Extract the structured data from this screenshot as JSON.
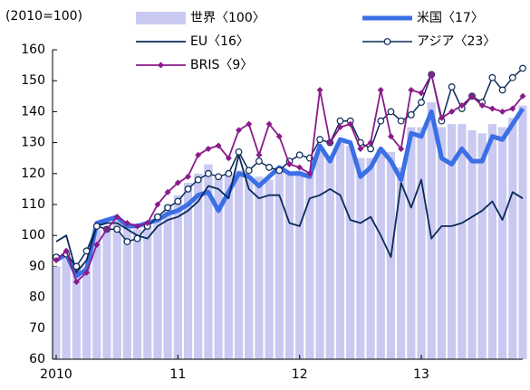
{
  "chart_data": {
    "type": "bar-line",
    "unit_label": "(2010=100)",
    "categories": [
      "2010",
      null,
      null,
      null,
      null,
      null,
      null,
      null,
      null,
      null,
      null,
      null,
      "11",
      null,
      null,
      null,
      null,
      null,
      null,
      null,
      null,
      null,
      null,
      null,
      "12",
      null,
      null,
      null,
      null,
      null,
      null,
      null,
      null,
      null,
      null,
      null,
      "13",
      null,
      null,
      null,
      null,
      null,
      null,
      null,
      null,
      null,
      null
    ],
    "ylim": [
      60,
      160
    ],
    "yticks": [
      60,
      70,
      80,
      90,
      100,
      110,
      120,
      130,
      140,
      150,
      160
    ],
    "grid": false,
    "series": [
      {
        "name": "世界〈100〉",
        "type": "bar",
        "color": "#c9c9f2",
        "values": [
          90,
          93,
          89,
          90,
          102,
          103,
          105,
          103,
          102,
          103,
          107,
          110,
          113,
          117,
          120,
          123,
          119,
          120,
          121,
          119,
          119,
          118,
          121,
          120,
          121,
          120,
          127,
          125,
          130,
          129,
          125,
          125,
          128,
          127,
          122,
          135,
          135,
          143,
          135,
          136,
          136,
          134,
          133,
          136,
          135,
          138,
          142
        ]
      },
      {
        "name": "米国〈17〉",
        "type": "line",
        "color": "#3b6fe6",
        "line_width": 5,
        "marker": "none",
        "values": [
          92,
          94,
          87,
          89,
          104,
          105,
          106,
          103,
          103,
          104,
          105,
          107,
          108,
          110,
          113,
          114,
          108,
          114,
          120,
          119,
          116,
          119,
          122,
          120,
          120,
          119,
          129,
          124,
          131,
          130,
          119,
          122,
          128,
          124,
          118,
          133,
          132,
          140,
          125,
          123,
          128,
          124,
          124,
          132,
          131,
          136,
          141
        ]
      },
      {
        "name": "EU〈16〉",
        "type": "line",
        "color": "#0b2a58",
        "line_width": 1.8,
        "marker": "none",
        "values": [
          98,
          100,
          88,
          92,
          103,
          104,
          104,
          102,
          100,
          99,
          103,
          105,
          106,
          108,
          111,
          116,
          115,
          112,
          126,
          115,
          112,
          113,
          113,
          104,
          103,
          112,
          113,
          115,
          113,
          105,
          104,
          106,
          100,
          93,
          117,
          109,
          118,
          99,
          103,
          103,
          104,
          106,
          108,
          111,
          105,
          114,
          112
        ]
      },
      {
        "name": "アジア〈23〉",
        "type": "line",
        "color": "#0b2a58",
        "line_width": 1.5,
        "marker": "circle",
        "values": [
          93,
          94,
          90,
          95,
          103,
          102,
          102,
          98,
          99,
          103,
          106,
          109,
          111,
          115,
          118,
          120,
          119,
          120,
          127,
          121,
          124,
          122,
          121,
          124,
          126,
          125,
          131,
          130,
          137,
          137,
          130,
          128,
          137,
          140,
          137,
          139,
          143,
          152,
          137,
          148,
          141,
          145,
          143,
          151,
          147,
          151,
          154
        ]
      },
      {
        "name": "BRIS〈9〉",
        "type": "line",
        "color": "#8b1a8b",
        "line_width": 1.8,
        "marker": "diamond",
        "values": [
          92,
          95,
          85,
          88,
          97,
          102,
          106,
          104,
          103,
          104,
          110,
          114,
          117,
          119,
          126,
          128,
          129,
          125,
          134,
          136,
          126,
          136,
          132,
          123,
          122,
          120,
          147,
          130,
          135,
          136,
          128,
          130,
          147,
          132,
          128,
          147,
          146,
          152,
          138,
          140,
          142,
          145,
          142,
          141,
          140,
          141,
          145
        ]
      }
    ]
  }
}
